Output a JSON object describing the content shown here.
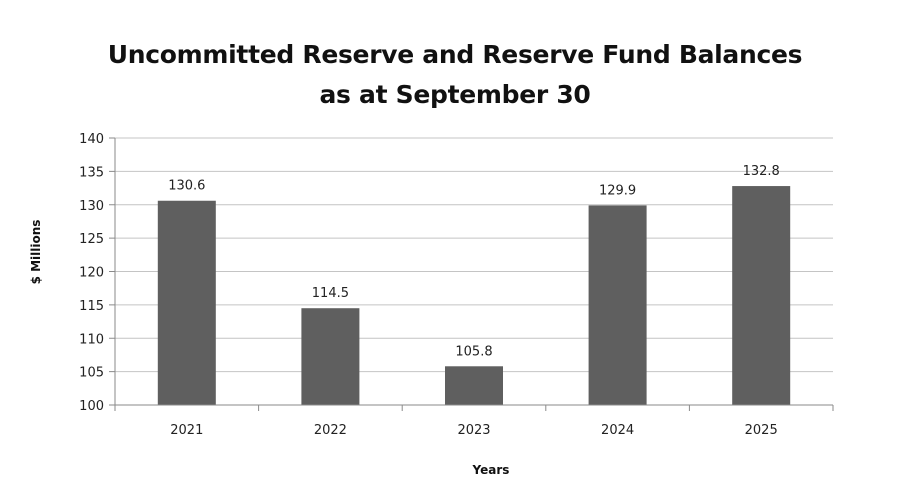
{
  "chart_data": {
    "type": "bar",
    "title_lines": [
      "Uncommitted Reserve and Reserve Fund Balances",
      "as at September 30"
    ],
    "categories": [
      "2021",
      "2022",
      "2023",
      "2024",
      "2025"
    ],
    "values": [
      130.6,
      114.5,
      105.8,
      129.9,
      132.8
    ],
    "data_labels": [
      "130.6",
      "114.5",
      "105.8",
      "129.9",
      "132.8"
    ],
    "xlabel": "Years",
    "ylabel": "$ Millions",
    "ylim": [
      100,
      140
    ],
    "yticks": [
      100,
      105,
      110,
      115,
      120,
      125,
      130,
      135,
      140
    ],
    "grid": true,
    "legend": "none",
    "colors": {
      "bar": "#5f5f5f",
      "grid": "#c4c4c4",
      "axis": "#8a8a8a"
    }
  }
}
